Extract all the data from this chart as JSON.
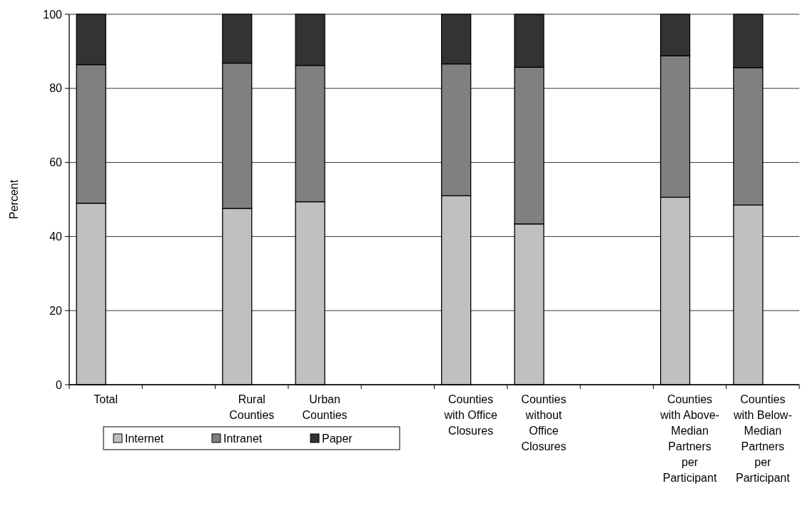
{
  "chart_data": {
    "type": "bar",
    "stacked": true,
    "ylabel": "Percent",
    "categories": [
      "Total",
      null,
      "Rural Counties",
      "Urban Counties",
      null,
      "Counties with Office Closures",
      "Counties without Office Closures",
      null,
      "Counties with Above-Median Partners per Participant",
      "Counties with Below-Median Partners per Participant"
    ],
    "series": [
      {
        "name": "Internet",
        "color": "#c0c0c0",
        "values": [
          49.0,
          null,
          47.6,
          49.4,
          null,
          51.0,
          43.4,
          null,
          50.6,
          48.5
        ]
      },
      {
        "name": "Intranet",
        "color": "#808080",
        "values": [
          37.4,
          null,
          39.2,
          36.8,
          null,
          35.6,
          42.3,
          null,
          38.2,
          37.1
        ]
      },
      {
        "name": "Paper",
        "color": "#333333",
        "values": [
          13.6,
          null,
          13.2,
          13.8,
          null,
          13.4,
          14.3,
          null,
          11.2,
          14.4
        ]
      }
    ],
    "ylim": [
      0,
      100
    ],
    "yticks": [
      0,
      20,
      40,
      60,
      80,
      100
    ],
    "grid": "y",
    "legend": "bottom left"
  }
}
